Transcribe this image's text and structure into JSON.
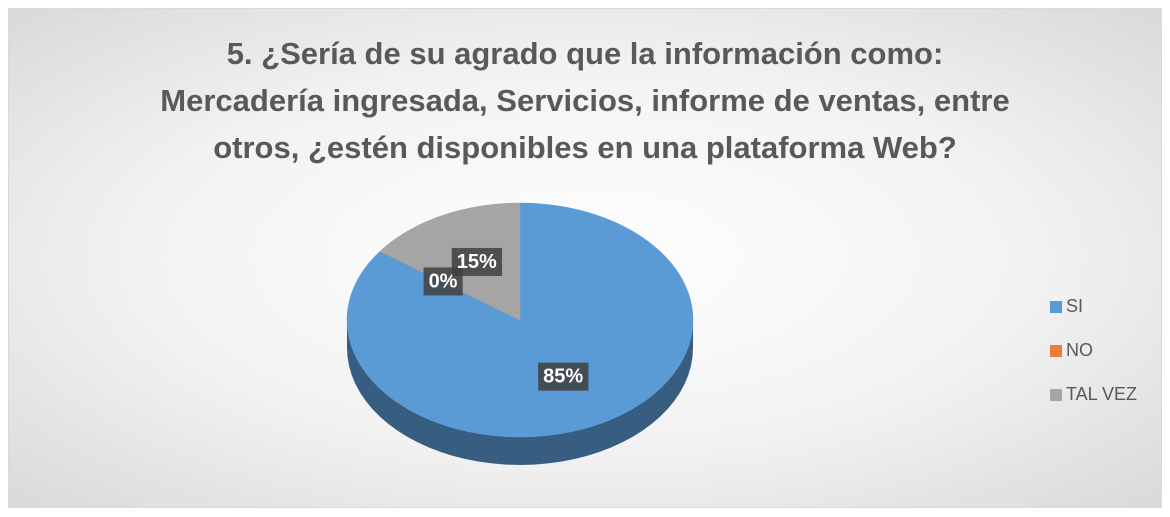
{
  "chart_data": {
    "type": "pie",
    "title": "5. ¿Sería de su agrado que la información como: Mercadería ingresada, Servicios, informe de ventas, entre otros, ¿estén disponibles en una plataforma Web?",
    "categories": [
      "SI",
      "NO",
      "TAL VEZ"
    ],
    "values": [
      85,
      0,
      15
    ],
    "value_labels": [
      "85%",
      "0%",
      "15%"
    ],
    "colors": [
      "#5b9bd5",
      "#ed7d31",
      "#a5a5a5"
    ],
    "legend": "right"
  }
}
